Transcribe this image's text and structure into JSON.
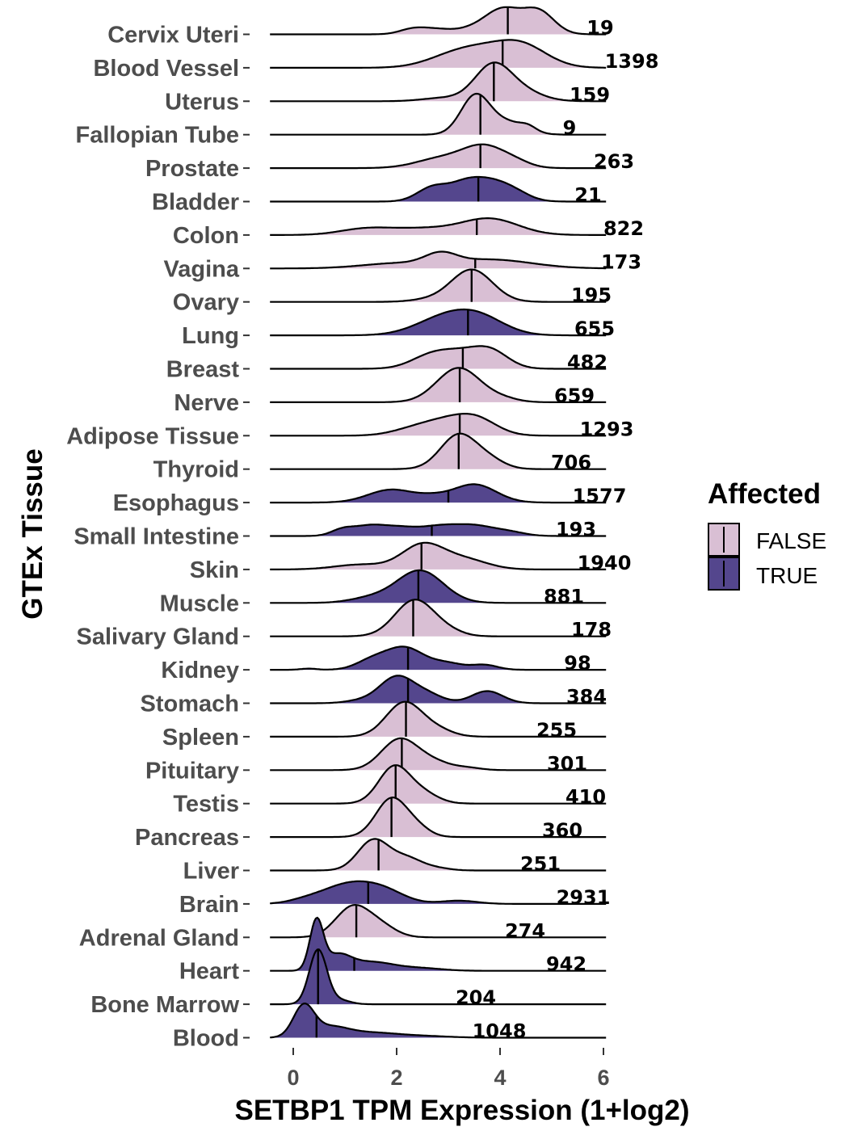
{
  "chart_data": {
    "type": "ridgeline",
    "xlabel": "SETBP1 TPM Expression (1+log2)",
    "ylabel": "GTEx Tissue",
    "xlim": [
      -0.45,
      6.1
    ],
    "xticks": [
      0,
      2,
      4,
      6
    ],
    "tick_labels": [
      "0",
      "2",
      "4",
      "6"
    ],
    "legend": {
      "title": "Affected",
      "position": "right",
      "entries": [
        {
          "label": "FALSE",
          "color": "#d9bfd4"
        },
        {
          "label": "TRUE",
          "color": "#54468d"
        }
      ]
    },
    "colors": {
      "FALSE": "#d9bfd4",
      "TRUE": "#54468d",
      "line": "#000000"
    },
    "series": [
      {
        "tissue": "Cervix Uteri",
        "affected": false,
        "n": "19",
        "median": 4.15,
        "range": [
          -0.45,
          6.05
        ],
        "peaks": [
          [
            2.3,
            0.25,
            0.12
          ],
          [
            2.75,
            0.3,
            0.12
          ],
          [
            4.05,
            0.35,
            0.62
          ],
          [
            4.75,
            0.3,
            0.55
          ],
          [
            3.4,
            0.3,
            0.1
          ]
        ]
      },
      {
        "tissue": "Blood Vessel",
        "affected": false,
        "n": "1398",
        "median": 4.05,
        "range": [
          -0.45,
          6.05
        ],
        "peaks": [
          [
            3.5,
            0.55,
            0.4
          ],
          [
            4.4,
            0.5,
            0.55
          ],
          [
            2.9,
            0.5,
            0.12
          ]
        ]
      },
      {
        "tissue": "Uterus",
        "affected": false,
        "n": "159",
        "median": 3.88,
        "range": [
          -0.45,
          6.05
        ],
        "peaks": [
          [
            3.85,
            0.35,
            0.85
          ],
          [
            4.4,
            0.4,
            0.25
          ],
          [
            2.9,
            0.4,
            0.08
          ]
        ]
      },
      {
        "tissue": "Fallopian Tube",
        "affected": false,
        "n": "9",
        "median": 3.62,
        "range": [
          -0.45,
          6.05
        ],
        "peaks": [
          [
            3.52,
            0.28,
            0.95
          ],
          [
            4.15,
            0.35,
            0.3
          ],
          [
            4.55,
            0.15,
            0.1
          ]
        ]
      },
      {
        "tissue": "Prostate",
        "affected": false,
        "n": "263",
        "median": 3.62,
        "range": [
          -0.45,
          6.05
        ],
        "peaks": [
          [
            2.9,
            0.5,
            0.25
          ],
          [
            3.7,
            0.4,
            0.5
          ],
          [
            4.3,
            0.3,
            0.12
          ]
        ]
      },
      {
        "tissue": "Bladder",
        "affected": true,
        "n": "21",
        "median": 3.58,
        "range": [
          -0.45,
          6.05
        ],
        "peaks": [
          [
            2.7,
            0.3,
            0.35
          ],
          [
            3.3,
            0.3,
            0.35
          ],
          [
            3.8,
            0.35,
            0.45
          ],
          [
            4.3,
            0.3,
            0.18
          ]
        ]
      },
      {
        "tissue": "Colon",
        "affected": false,
        "n": "822",
        "median": 3.55,
        "range": [
          -0.45,
          6.05
        ],
        "peaks": [
          [
            1.4,
            0.5,
            0.15
          ],
          [
            2.5,
            0.6,
            0.15
          ],
          [
            3.8,
            0.55,
            0.4
          ]
        ]
      },
      {
        "tissue": "Vagina",
        "affected": false,
        "n": "173",
        "median": 3.52,
        "range": [
          -0.45,
          6.05
        ],
        "peaks": [
          [
            2.0,
            0.7,
            0.12
          ],
          [
            2.85,
            0.3,
            0.25
          ],
          [
            3.8,
            0.8,
            0.22
          ]
        ]
      },
      {
        "tissue": "Ovary",
        "affected": false,
        "n": "195",
        "median": 3.45,
        "range": [
          -0.45,
          6.05
        ],
        "peaks": [
          [
            3.45,
            0.4,
            0.8
          ],
          [
            2.6,
            0.35,
            0.05
          ]
        ]
      },
      {
        "tissue": "Lung",
        "affected": true,
        "n": "655",
        "median": 3.38,
        "range": [
          -0.45,
          6.05
        ],
        "peaks": [
          [
            2.9,
            0.55,
            0.4
          ],
          [
            3.6,
            0.5,
            0.4
          ]
        ]
      },
      {
        "tissue": "Breast",
        "affected": false,
        "n": "482",
        "median": 3.28,
        "range": [
          -0.45,
          6.05
        ],
        "peaks": [
          [
            2.7,
            0.4,
            0.35
          ],
          [
            3.8,
            0.35,
            0.45
          ],
          [
            3.25,
            0.35,
            0.25
          ]
        ]
      },
      {
        "tissue": "Nerve",
        "affected": false,
        "n": "659",
        "median": 3.22,
        "range": [
          -0.45,
          6.05
        ],
        "peaks": [
          [
            3.2,
            0.42,
            0.85
          ],
          [
            4.05,
            0.3,
            0.08
          ]
        ]
      },
      {
        "tissue": "Adipose Tissue",
        "affected": false,
        "n": "1293",
        "median": 3.22,
        "range": [
          -0.45,
          6.05
        ],
        "peaks": [
          [
            2.9,
            0.5,
            0.35
          ],
          [
            3.55,
            0.4,
            0.35
          ],
          [
            2.2,
            0.4,
            0.08
          ]
        ]
      },
      {
        "tissue": "Thyroid",
        "affected": false,
        "n": "706",
        "median": 3.2,
        "range": [
          -0.45,
          6.05
        ],
        "peaks": [
          [
            3.2,
            0.35,
            0.85
          ],
          [
            3.8,
            0.3,
            0.2
          ]
        ]
      },
      {
        "tissue": "Esophagus",
        "affected": true,
        "n": "1577",
        "median": 3.0,
        "range": [
          -0.45,
          6.05
        ],
        "peaks": [
          [
            1.9,
            0.45,
            0.32
          ],
          [
            3.5,
            0.42,
            0.45
          ],
          [
            2.7,
            0.3,
            0.1
          ]
        ]
      },
      {
        "tissue": "Small Intestine",
        "affected": true,
        "n": "193",
        "median": 2.68,
        "range": [
          -0.45,
          6.05
        ],
        "peaks": [
          [
            0.95,
            0.22,
            0.15
          ],
          [
            1.45,
            0.3,
            0.22
          ],
          [
            2.05,
            0.35,
            0.2
          ],
          [
            2.8,
            0.35,
            0.2
          ],
          [
            3.5,
            0.4,
            0.25
          ],
          [
            4.2,
            0.3,
            0.08
          ]
        ]
      },
      {
        "tissue": "Skin",
        "affected": false,
        "n": "1940",
        "median": 2.48,
        "range": [
          -0.45,
          6.05
        ],
        "peaks": [
          [
            1.3,
            0.5,
            0.12
          ],
          [
            2.5,
            0.4,
            0.6
          ],
          [
            3.3,
            0.45,
            0.25
          ]
        ]
      },
      {
        "tissue": "Muscle",
        "affected": true,
        "n": "881",
        "median": 2.42,
        "range": [
          -0.45,
          6.05
        ],
        "peaks": [
          [
            2.45,
            0.45,
            0.8
          ],
          [
            1.5,
            0.4,
            0.12
          ]
        ]
      },
      {
        "tissue": "Salivary Gland",
        "affected": false,
        "n": "178",
        "median": 2.32,
        "range": [
          -0.45,
          6.05
        ],
        "peaks": [
          [
            2.35,
            0.38,
            0.9
          ],
          [
            3.0,
            0.3,
            0.1
          ]
        ]
      },
      {
        "tissue": "Kidney",
        "affected": true,
        "n": "98",
        "median": 2.22,
        "range": [
          -0.45,
          6.05
        ],
        "peaks": [
          [
            2.15,
            0.38,
            0.55
          ],
          [
            1.5,
            0.3,
            0.2
          ],
          [
            3.0,
            0.3,
            0.15
          ],
          [
            3.7,
            0.25,
            0.12
          ],
          [
            0.3,
            0.15,
            0.03
          ]
        ]
      },
      {
        "tissue": "Stomach",
        "affected": true,
        "n": "384",
        "median": 2.22,
        "range": [
          -0.45,
          6.05
        ],
        "peaks": [
          [
            2.0,
            0.33,
            0.65
          ],
          [
            2.6,
            0.3,
            0.2
          ],
          [
            3.75,
            0.3,
            0.3
          ],
          [
            1.3,
            0.3,
            0.06
          ]
        ]
      },
      {
        "tissue": "Spleen",
        "affected": false,
        "n": "255",
        "median": 2.18,
        "range": [
          -0.45,
          6.05
        ],
        "peaks": [
          [
            2.15,
            0.35,
            0.85
          ],
          [
            2.8,
            0.3,
            0.15
          ]
        ]
      },
      {
        "tissue": "Pituitary",
        "affected": false,
        "n": "301",
        "median": 2.1,
        "range": [
          -0.45,
          6.05
        ],
        "peaks": [
          [
            2.05,
            0.35,
            0.75
          ],
          [
            2.7,
            0.35,
            0.2
          ],
          [
            3.4,
            0.25,
            0.05
          ]
        ]
      },
      {
        "tissue": "Testis",
        "affected": false,
        "n": "410",
        "median": 1.98,
        "range": [
          -0.45,
          6.05
        ],
        "peaks": [
          [
            1.95,
            0.3,
            0.9
          ],
          [
            2.5,
            0.3,
            0.25
          ]
        ]
      },
      {
        "tissue": "Pancreas",
        "affected": false,
        "n": "360",
        "median": 1.9,
        "range": [
          -0.45,
          6.05
        ],
        "peaks": [
          [
            1.9,
            0.3,
            0.95
          ],
          [
            2.4,
            0.25,
            0.2
          ]
        ]
      },
      {
        "tissue": "Liver",
        "affected": false,
        "n": "251",
        "median": 1.65,
        "range": [
          -0.45,
          6.05
        ],
        "peaks": [
          [
            1.55,
            0.3,
            0.75
          ],
          [
            2.2,
            0.3,
            0.3
          ],
          [
            2.8,
            0.25,
            0.05
          ]
        ]
      },
      {
        "tissue": "Brain",
        "affected": true,
        "n": "2931",
        "median": 1.45,
        "range": [
          -0.45,
          6.05
        ],
        "peaks": [
          [
            1.1,
            0.55,
            0.5
          ],
          [
            1.8,
            0.4,
            0.2
          ],
          [
            3.2,
            0.35,
            0.08
          ],
          [
            0.2,
            0.3,
            0.05
          ]
        ]
      },
      {
        "tissue": "Adrenal Gland",
        "affected": false,
        "n": "274",
        "median": 1.22,
        "range": [
          -0.45,
          6.05
        ],
        "peaks": [
          [
            1.15,
            0.33,
            0.75
          ],
          [
            1.7,
            0.3,
            0.25
          ]
        ]
      },
      {
        "tissue": "Heart",
        "affected": true,
        "n": "942",
        "median": 1.18,
        "range": [
          -0.45,
          6.05
        ],
        "peaks": [
          [
            0.45,
            0.13,
            1.2
          ],
          [
            0.85,
            0.25,
            0.35
          ],
          [
            1.5,
            0.45,
            0.22
          ],
          [
            2.5,
            0.4,
            0.06
          ]
        ]
      },
      {
        "tissue": "Bone Marrow",
        "affected": true,
        "n": "204",
        "median": 0.48,
        "range": [
          -0.45,
          6.05
        ],
        "peaks": [
          [
            0.48,
            0.17,
            1.35
          ],
          [
            0.9,
            0.2,
            0.1
          ]
        ]
      },
      {
        "tissue": "Blood",
        "affected": true,
        "n": "1048",
        "median": 0.45,
        "range": [
          -0.45,
          6.05
        ],
        "peaks": [
          [
            0.2,
            0.2,
            0.75
          ],
          [
            0.7,
            0.35,
            0.25
          ],
          [
            1.5,
            0.5,
            0.12
          ],
          [
            2.5,
            0.5,
            0.04
          ]
        ]
      }
    ]
  }
}
